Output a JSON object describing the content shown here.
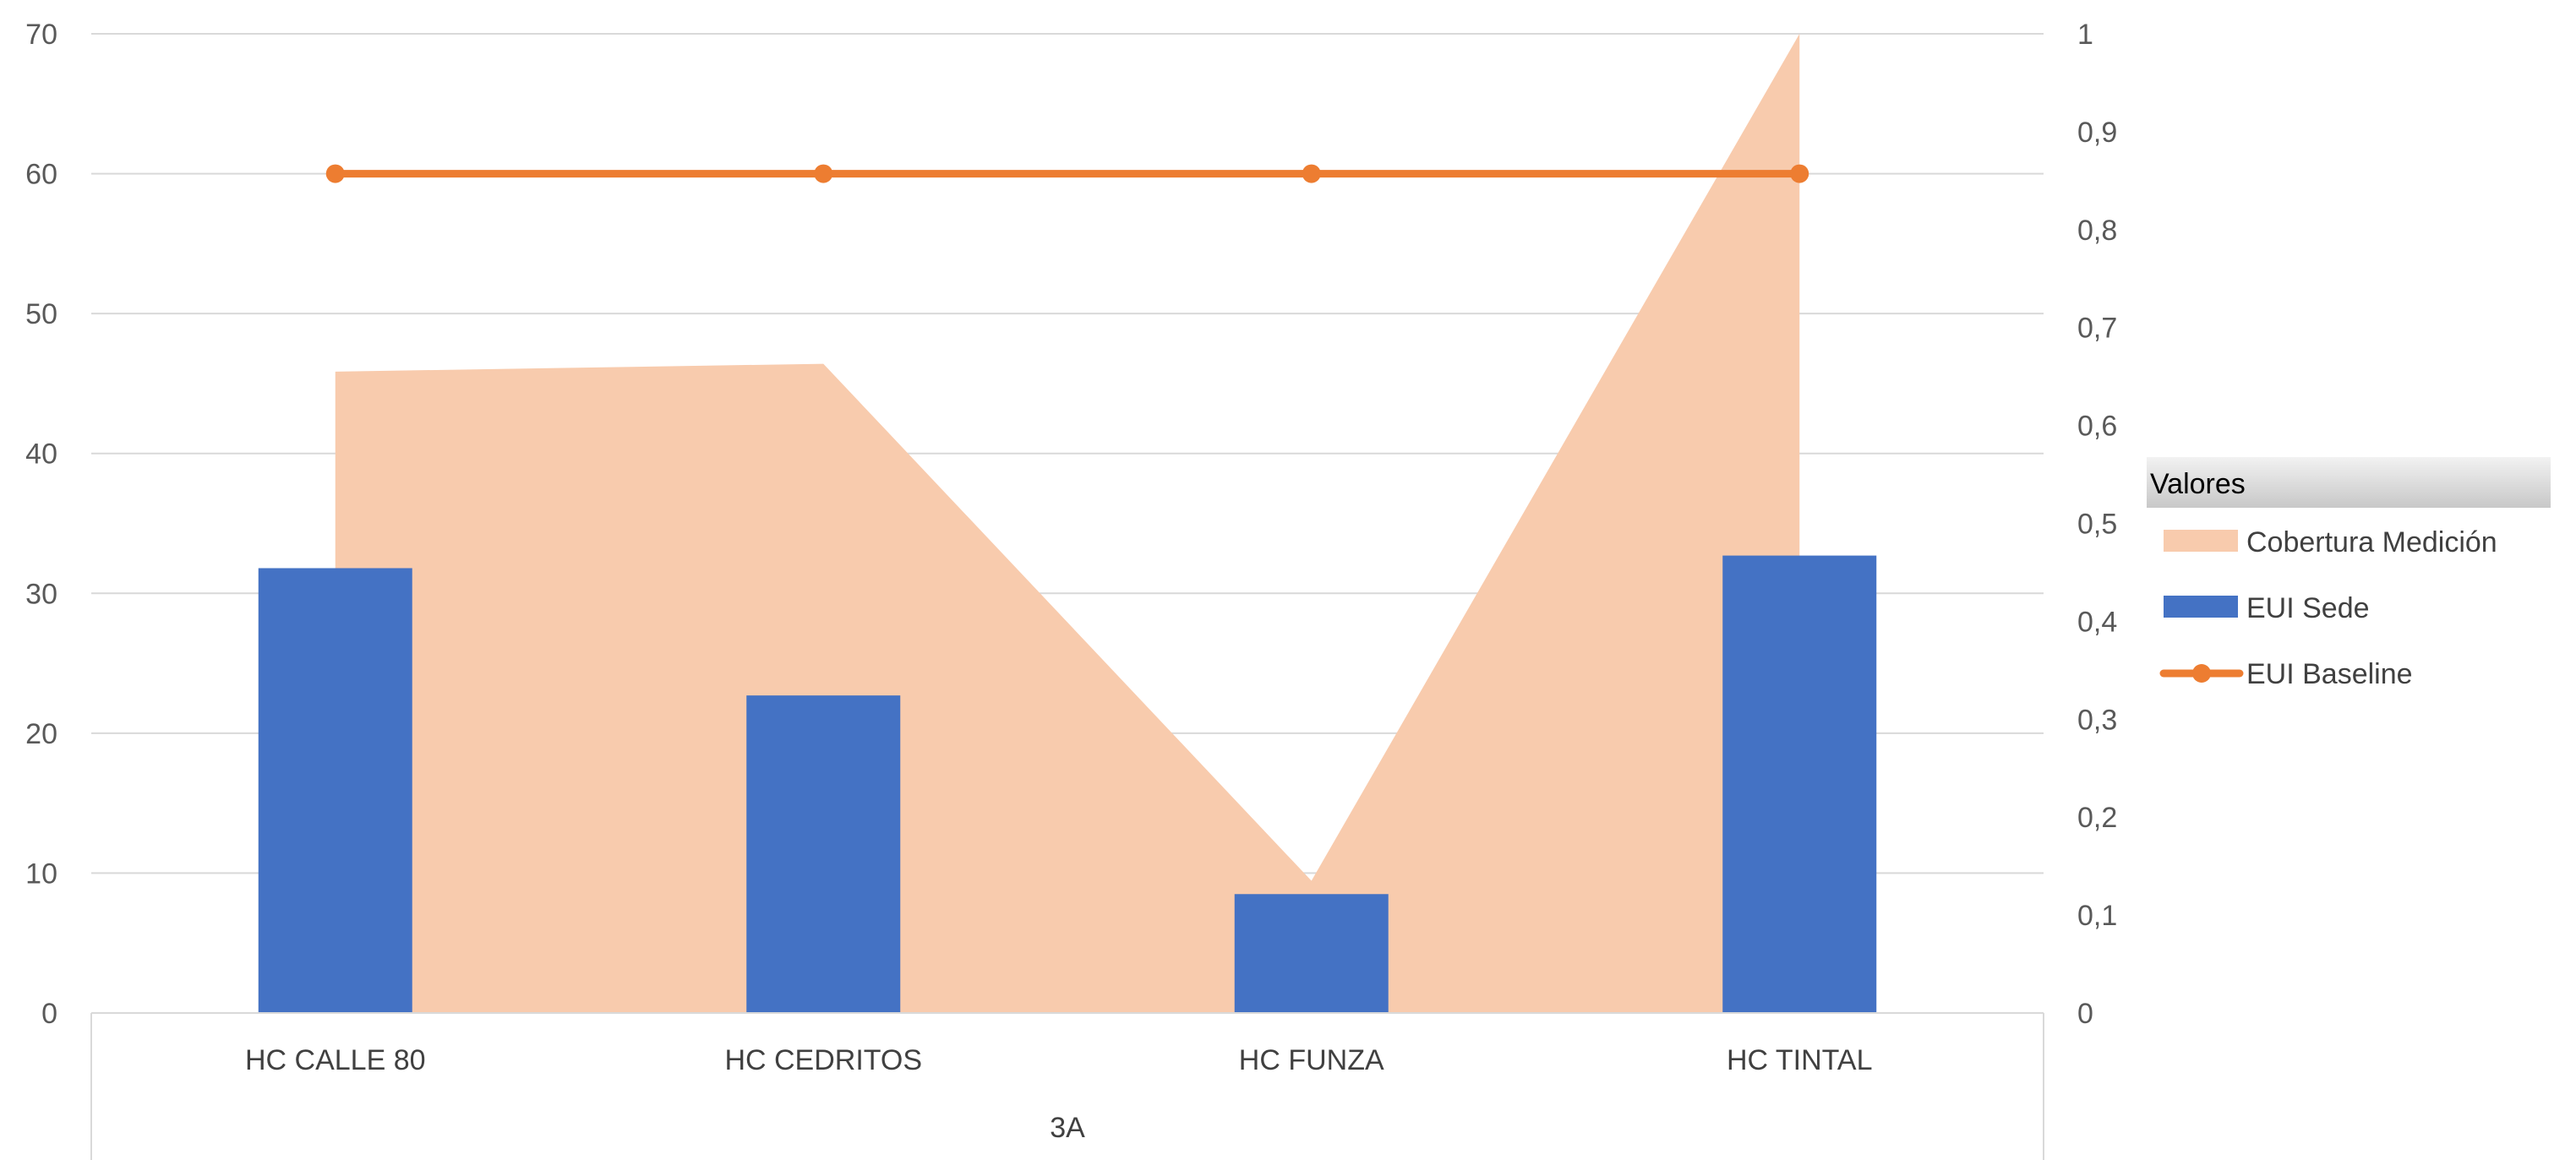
{
  "chart_data": {
    "type": "combo",
    "categories": [
      "HC CALLE 80",
      "HC CEDRITOS",
      "HC FUNZA",
      "HC TINTAL"
    ],
    "group_label": "3A",
    "series": [
      {
        "name": "Cobertura Medición",
        "type": "area",
        "axis": "right",
        "color": "#F8CBAD",
        "values": [
          0.655,
          0.663,
          0.135,
          1.0
        ]
      },
      {
        "name": "EUI Sede",
        "type": "bar",
        "axis": "left",
        "color": "#4472C4",
        "values": [
          31.8,
          22.7,
          8.5,
          32.7
        ]
      },
      {
        "name": "EUI Baseline",
        "type": "line",
        "axis": "left",
        "color": "#ED7D31",
        "values": [
          60,
          60,
          60,
          60
        ]
      }
    ],
    "y_left": {
      "min": 0,
      "max": 70,
      "ticks": [
        "0",
        "10",
        "20",
        "30",
        "40",
        "50",
        "60",
        "70"
      ]
    },
    "y_right": {
      "min": 0,
      "max": 1,
      "ticks": [
        "0",
        "0,1",
        "0,2",
        "0,3",
        "0,4",
        "0,5",
        "0,6",
        "0,7",
        "0,8",
        "0,9",
        "1"
      ]
    },
    "grid": true,
    "legend": {
      "title": "Valores",
      "position": "right",
      "entries": [
        "Cobertura Medición",
        "EUI Sede",
        "EUI Baseline"
      ]
    }
  }
}
